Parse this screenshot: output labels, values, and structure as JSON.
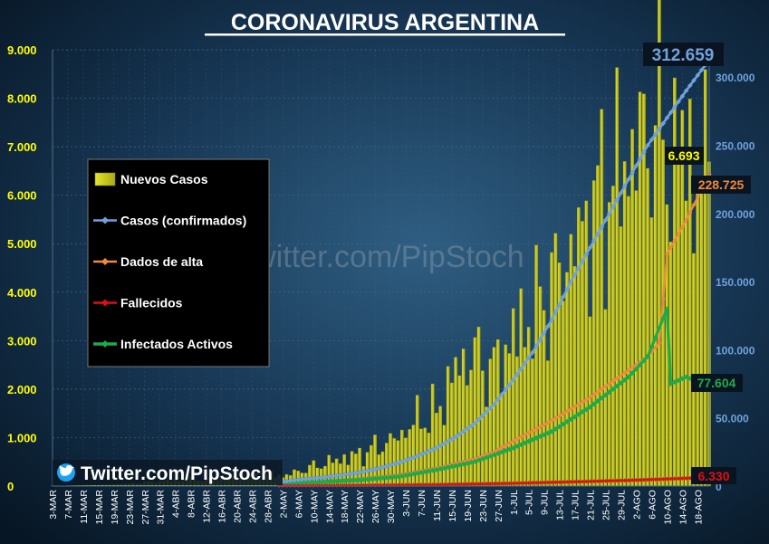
{
  "chart_data": {
    "type": "bar",
    "title": "CORONAVIRUS ARGENTINA",
    "watermark": "Twitter.com/PipStoch",
    "credit": "Twitter.com/PipStoch",
    "y_left": {
      "range": [
        0,
        9000
      ],
      "ticks": [
        "0",
        "1.000",
        "2.000",
        "3.000",
        "4.000",
        "5.000",
        "6.000",
        "7.000",
        "8.000",
        "9.000"
      ]
    },
    "y_right": {
      "range": [
        0,
        320000
      ],
      "ticks": [
        "0",
        "50.000",
        "100.000",
        "150.000",
        "200.000",
        "250.000",
        "300.000"
      ]
    },
    "x_tick_labels": [
      "3-MAR",
      "7-MAR",
      "11-MAR",
      "15-MAR",
      "19-MAR",
      "23-MAR",
      "27-MAR",
      "31-MAR",
      "4-ABR",
      "8-ABR",
      "12-ABR",
      "16-ABR",
      "20-ABR",
      "24-ABR",
      "28-ABR",
      "2-MAY",
      "6-MAY",
      "10-MAY",
      "14-MAY",
      "18-MAY",
      "22-MAY",
      "26-MAY",
      "30-MAY",
      "3-JUN",
      "7-JUN",
      "11-JUN",
      "15-JUN",
      "19-JUN",
      "23-JUN",
      "27-JUN",
      "1-JUL",
      "5-JUL",
      "9-JUL",
      "13-JUL",
      "17-JUL",
      "21-JUL",
      "25-JUL",
      "29-JUL",
      "2-AGO",
      "6-AGO",
      "10-AGO",
      "14-AGO",
      "18-AGO"
    ],
    "legend": [
      {
        "key": "nuevos",
        "name": "Nuevos Casos",
        "color": "#c8c81e"
      },
      {
        "key": "confirmados",
        "name": "Casos (confirmados)",
        "color": "#6fa2dc"
      },
      {
        "key": "alta",
        "name": "Dados de alta",
        "color": "#f08a3c"
      },
      {
        "key": "fallecidos",
        "name": "Fallecidos",
        "color": "#e01010"
      },
      {
        "key": "activos",
        "name": "Infectados Activos",
        "color": "#1faa4a"
      }
    ],
    "series_keypoints": {
      "nuevos_casos": [
        [
          0,
          2
        ],
        [
          10,
          20
        ],
        [
          20,
          50
        ],
        [
          30,
          110
        ],
        [
          40,
          140
        ],
        [
          50,
          180
        ],
        [
          56,
          250
        ],
        [
          60,
          200
        ],
        [
          70,
          450
        ],
        [
          80,
          650
        ],
        [
          90,
          1000
        ],
        [
          95,
          1370
        ],
        [
          100,
          1500
        ],
        [
          105,
          2400
        ],
        [
          110,
          2700
        ],
        [
          115,
          2400
        ],
        [
          120,
          3100
        ],
        [
          125,
          3500
        ],
        [
          130,
          4200
        ],
        [
          135,
          4800
        ],
        [
          140,
          5600
        ],
        [
          145,
          6200
        ],
        [
          150,
          6700
        ],
        [
          155,
          7300
        ],
        [
          158,
          7500
        ],
        [
          162,
          6500
        ],
        [
          165,
          7400
        ],
        [
          168,
          5700
        ],
        [
          170,
          6700
        ],
        [
          171,
          6693
        ]
      ],
      "casos_confirmados": [
        [
          59,
          3000
        ],
        [
          65,
          5000
        ],
        [
          70,
          6200
        ],
        [
          75,
          8000
        ],
        [
          80,
          10000
        ],
        [
          85,
          13000
        ],
        [
          90,
          17000
        ],
        [
          95,
          22000
        ],
        [
          100,
          28000
        ],
        [
          105,
          36000
        ],
        [
          110,
          46000
        ],
        [
          115,
          60000
        ],
        [
          120,
          78000
        ],
        [
          125,
          98000
        ],
        [
          130,
          122000
        ],
        [
          135,
          150000
        ],
        [
          140,
          175000
        ],
        [
          145,
          200000
        ],
        [
          150,
          225000
        ],
        [
          155,
          250000
        ],
        [
          160,
          270000
        ],
        [
          165,
          290000
        ],
        [
          171,
          312659
        ]
      ],
      "dados_de_alta": [
        [
          59,
          1000
        ],
        [
          70,
          2500
        ],
        [
          80,
          5000
        ],
        [
          90,
          8000
        ],
        [
          100,
          13000
        ],
        [
          110,
          20000
        ],
        [
          115,
          25000
        ],
        [
          120,
          33000
        ],
        [
          130,
          48000
        ],
        [
          140,
          65000
        ],
        [
          150,
          85000
        ],
        [
          155,
          95000
        ],
        [
          158,
          105000
        ],
        [
          160,
          170000
        ],
        [
          165,
          195000
        ],
        [
          171,
          228725
        ]
      ],
      "fallecidos": [
        [
          59,
          150
        ],
        [
          70,
          300
        ],
        [
          80,
          450
        ],
        [
          90,
          700
        ],
        [
          100,
          1000
        ],
        [
          110,
          1500
        ],
        [
          120,
          2000
        ],
        [
          130,
          2700
        ],
        [
          140,
          3400
        ],
        [
          150,
          4200
        ],
        [
          160,
          5200
        ],
        [
          171,
          6330
        ]
      ],
      "infectados_activos": [
        [
          59,
          1500
        ],
        [
          70,
          3000
        ],
        [
          80,
          4500
        ],
        [
          90,
          7000
        ],
        [
          100,
          12000
        ],
        [
          110,
          18000
        ],
        [
          120,
          28000
        ],
        [
          130,
          40000
        ],
        [
          140,
          58000
        ],
        [
          150,
          80000
        ],
        [
          155,
          95000
        ],
        [
          160,
          130000
        ],
        [
          161,
          75000
        ],
        [
          165,
          80000
        ],
        [
          168,
          77000
        ],
        [
          171,
          77604
        ]
      ]
    },
    "end_labels": {
      "nuevos_casos": "6.693",
      "casos_confirmados": "312.659",
      "dados_de_alta": "228.725",
      "fallecidos": "6.330",
      "infectados_activos": "77.604"
    },
    "grid": true,
    "legend_placement": "left-center"
  }
}
